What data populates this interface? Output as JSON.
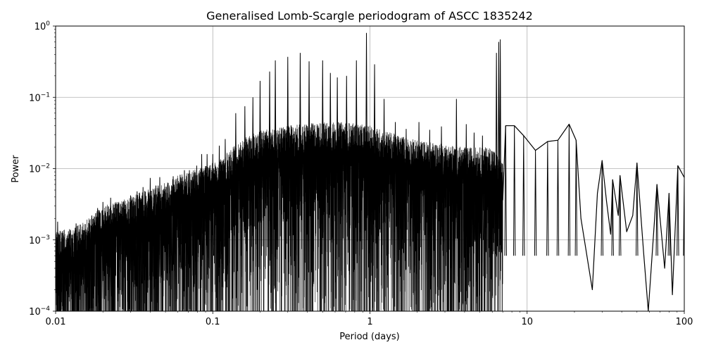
{
  "chart_data": {
    "type": "line",
    "title": "Generalised Lomb-Scargle periodogram of ASCC 1835242",
    "xlabel": "Period (days)",
    "ylabel": "Power",
    "xscale": "log",
    "yscale": "log",
    "xlim": [
      0.01,
      100
    ],
    "ylim": [
      0.0001,
      1
    ],
    "grid": true,
    "line_color": "#000000",
    "x_ticks": [
      {
        "value": 0.01,
        "label": "0.01"
      },
      {
        "value": 0.1,
        "label": "0.1"
      },
      {
        "value": 1,
        "label": "1"
      },
      {
        "value": 10,
        "label": "10"
      },
      {
        "value": 100,
        "label": "100"
      }
    ],
    "y_ticks": [
      {
        "value": 0.0001,
        "base": "10",
        "exp": "−4"
      },
      {
        "value": 0.001,
        "base": "10",
        "exp": "−3"
      },
      {
        "value": 0.01,
        "base": "10",
        "exp": "−2"
      },
      {
        "value": 0.1,
        "base": "10",
        "exp": "−1"
      },
      {
        "value": 1,
        "base": "10",
        "exp": "0"
      }
    ],
    "envelope": [
      [
        0.01,
        0.0013
      ],
      [
        0.013,
        0.0015
      ],
      [
        0.017,
        0.0022
      ],
      [
        0.02,
        0.003
      ],
      [
        0.025,
        0.0035
      ],
      [
        0.03,
        0.004
      ],
      [
        0.04,
        0.0055
      ],
      [
        0.05,
        0.0065
      ],
      [
        0.06,
        0.008
      ],
      [
        0.07,
        0.009
      ],
      [
        0.08,
        0.01
      ],
      [
        0.1,
        0.012
      ],
      [
        0.12,
        0.016
      ],
      [
        0.15,
        0.025
      ],
      [
        0.2,
        0.035
      ],
      [
        0.3,
        0.04
      ],
      [
        0.5,
        0.045
      ],
      [
        0.7,
        0.045
      ],
      [
        1,
        0.04
      ],
      [
        1.5,
        0.03
      ],
      [
        2,
        0.025
      ],
      [
        3,
        0.022
      ],
      [
        4,
        0.02
      ],
      [
        5,
        0.02
      ],
      [
        6,
        0.02
      ],
      [
        7,
        0.012
      ]
    ],
    "peaks": [
      [
        0.0103,
        0.0018
      ],
      [
        0.0135,
        0.0017
      ],
      [
        0.017,
        0.0022
      ],
      [
        0.0185,
        0.0028
      ],
      [
        0.02,
        0.0034
      ],
      [
        0.0224,
        0.0039
      ],
      [
        0.025,
        0.0032
      ],
      [
        0.03,
        0.0042
      ],
      [
        0.033,
        0.0048
      ],
      [
        0.036,
        0.0055
      ],
      [
        0.04,
        0.0074
      ],
      [
        0.046,
        0.0076
      ],
      [
        0.052,
        0.0063
      ],
      [
        0.056,
        0.0078
      ],
      [
        0.062,
        0.0082
      ],
      [
        0.066,
        0.0095
      ],
      [
        0.071,
        0.0095
      ],
      [
        0.079,
        0.011
      ],
      [
        0.085,
        0.016
      ],
      [
        0.092,
        0.016
      ],
      [
        0.1,
        0.016
      ],
      [
        0.11,
        0.021
      ],
      [
        0.12,
        0.026
      ],
      [
        0.14,
        0.06
      ],
      [
        0.16,
        0.075
      ],
      [
        0.18,
        0.1
      ],
      [
        0.2,
        0.17
      ],
      [
        0.23,
        0.23
      ],
      [
        0.25,
        0.33
      ],
      [
        0.3,
        0.37
      ],
      [
        0.36,
        0.42
      ],
      [
        0.41,
        0.32
      ],
      [
        0.5,
        0.33
      ],
      [
        0.56,
        0.22
      ],
      [
        0.62,
        0.19
      ],
      [
        0.71,
        0.2
      ],
      [
        0.82,
        0.33
      ],
      [
        0.95,
        0.8
      ],
      [
        1.07,
        0.29
      ],
      [
        1.23,
        0.095
      ],
      [
        1.45,
        0.045
      ],
      [
        1.7,
        0.036
      ],
      [
        2.05,
        0.045
      ],
      [
        2.4,
        0.035
      ],
      [
        2.85,
        0.039
      ],
      [
        3.55,
        0.095
      ],
      [
        4.1,
        0.042
      ],
      [
        4.6,
        0.032
      ],
      [
        5.2,
        0.029
      ],
      [
        6.38,
        0.42
      ],
      [
        6.6,
        0.6
      ],
      [
        6.75,
        0.65
      ],
      [
        7.3,
        0.04
      ],
      [
        8.3,
        0.04
      ],
      [
        9.5,
        0.029
      ],
      [
        11.3,
        0.018
      ],
      [
        13.5,
        0.024
      ],
      [
        15.7,
        0.025
      ],
      [
        18.5,
        0.042
      ],
      [
        20.5,
        0.025
      ],
      [
        30,
        0.013
      ],
      [
        35,
        0.007
      ],
      [
        39,
        0.008
      ],
      [
        50,
        0.012
      ],
      [
        67,
        0.006
      ],
      [
        80,
        0.0045
      ],
      [
        91,
        0.011
      ],
      [
        100,
        0.0075
      ]
    ],
    "dips": [
      [
        22,
        0.002
      ],
      [
        26,
        0.0002
      ],
      [
        28,
        0.0045
      ],
      [
        32,
        0.0035
      ],
      [
        34,
        0.0012
      ],
      [
        38,
        0.0022
      ],
      [
        43,
        0.0013
      ],
      [
        47,
        0.0022
      ],
      [
        55,
        0.0007
      ],
      [
        59,
        0.0001
      ],
      [
        75,
        0.0004
      ],
      [
        84,
        0.00017
      ]
    ]
  }
}
